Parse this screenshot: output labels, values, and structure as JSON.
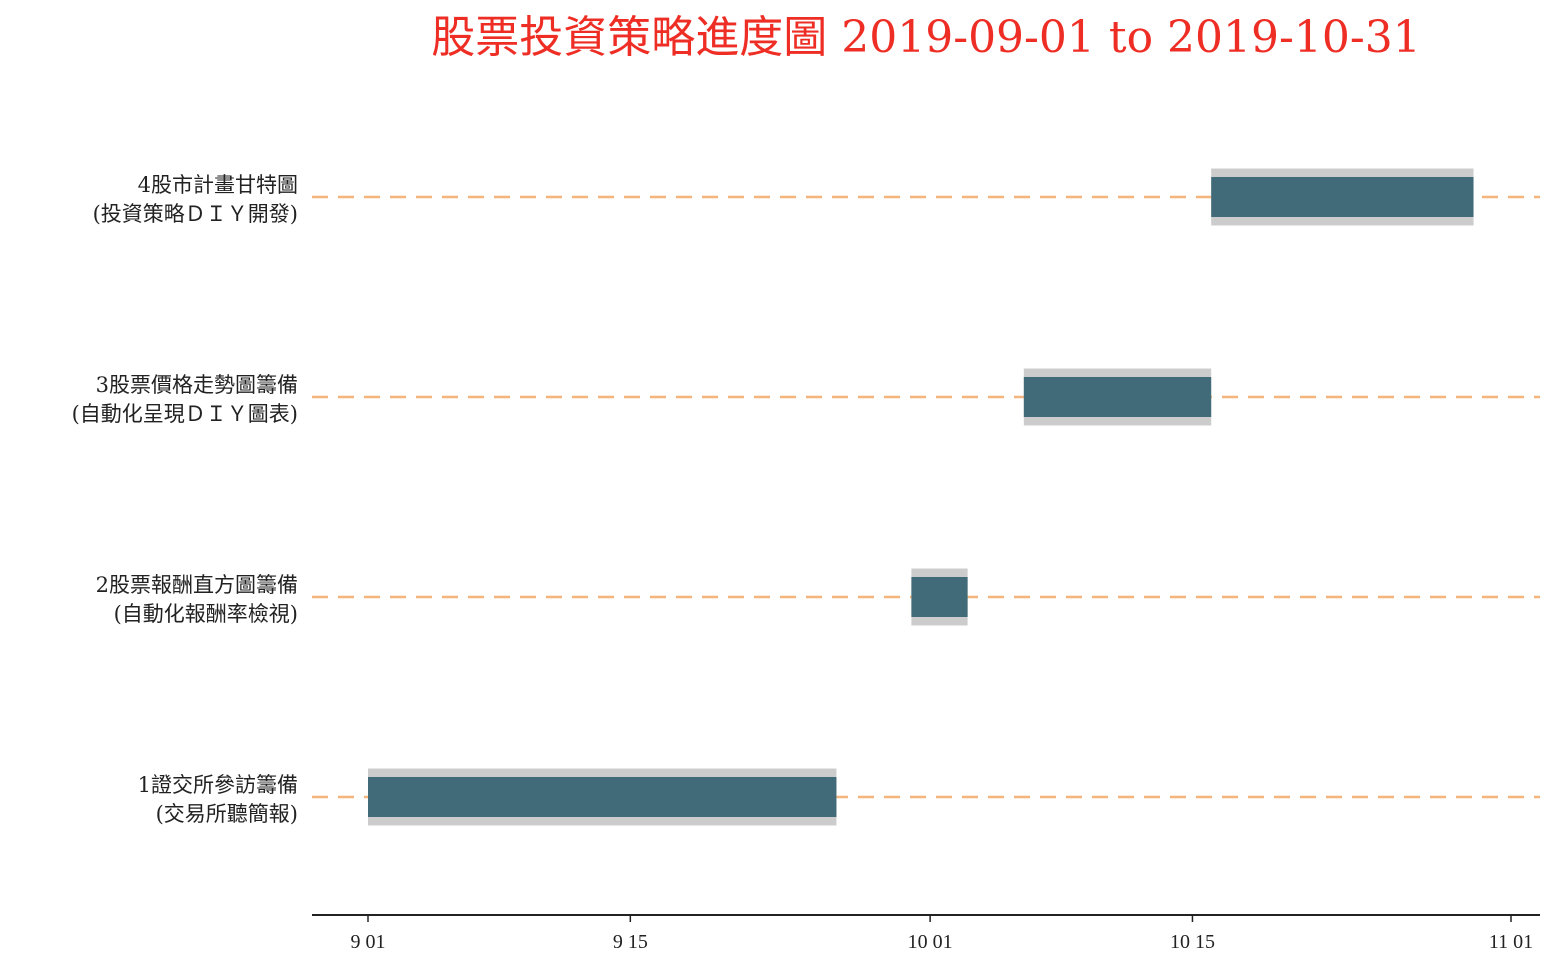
{
  "chart_data": {
    "type": "gantt",
    "title": "股票投資策略進度圖 2019-09-01 to 2019-10-31",
    "xlim": [
      "2019-09-01",
      "2019-11-01"
    ],
    "x_ticks": [
      {
        "date": "2019-09-01",
        "label": "9 01"
      },
      {
        "date": "2019-09-15",
        "label": "9 15"
      },
      {
        "date": "2019-10-01",
        "label": "10 01"
      },
      {
        "date": "2019-10-15",
        "label": "10 15"
      },
      {
        "date": "2019-11-01",
        "label": "11 01"
      }
    ],
    "tasks": [
      {
        "label_line1": "4股市計畫甘特圖",
        "label_line2": "(投資策略ＤＩＹ開發)",
        "start": "2019-10-16",
        "end": "2019-10-30"
      },
      {
        "label_line1": "3股票價格走勢圖籌備",
        "label_line2": "(自動化呈現ＤＩＹ圖表)",
        "start": "2019-10-06",
        "end": "2019-10-16"
      },
      {
        "label_line1": "2股票報酬直方圖籌備",
        "label_line2": "(自動化報酬率檢視)",
        "start": "2019-09-30",
        "end": "2019-10-03"
      },
      {
        "label_line1": "1證交所參訪籌備",
        "label_line2": "(交易所聽簡報)",
        "start": "2019-09-01",
        "end": "2019-09-26"
      }
    ],
    "colors": {
      "title": "#ee2d24",
      "bar": "#416b78",
      "bar_shadow": "#cccccc",
      "guide_line": "#f5b47b",
      "axis": "#222222"
    },
    "grid": false
  }
}
